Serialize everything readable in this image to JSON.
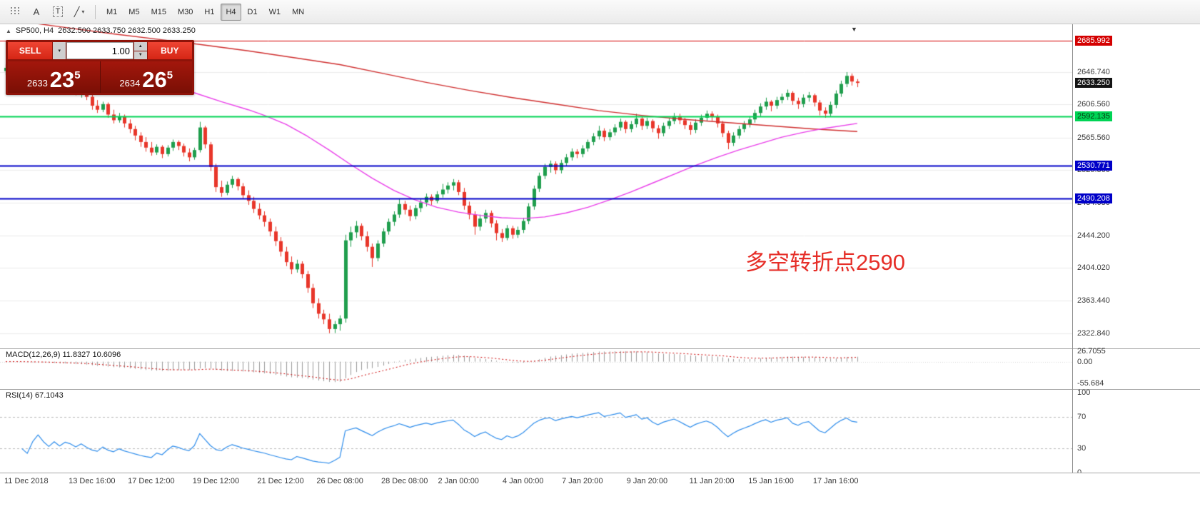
{
  "toolbar": {
    "text_tool_label": "A",
    "label_tool_label": "T",
    "timeframes": [
      {
        "label": "M1",
        "active": false
      },
      {
        "label": "M5",
        "active": false
      },
      {
        "label": "M15",
        "active": false
      },
      {
        "label": "M30",
        "active": false
      },
      {
        "label": "H1",
        "active": false
      },
      {
        "label": "H4",
        "active": true
      },
      {
        "label": "D1",
        "active": false
      },
      {
        "label": "W1",
        "active": false
      },
      {
        "label": "MN",
        "active": false
      }
    ]
  },
  "icons": {
    "caret_down": "▾",
    "spinner_up": "▲",
    "spinner_down": "▼",
    "expand_marker": "▲",
    "shift_marker": "▼",
    "line_tool": "╱"
  },
  "chart": {
    "header": {
      "symbol_text": "SP500, H4",
      "ohlc_text": "2632.500 2633.750 2632.500 2633.250"
    },
    "trade_panel": {
      "sell_label": "SELL",
      "buy_label": "BUY",
      "volume": "1.00",
      "sell_price": {
        "prefix": "2633",
        "big": "23",
        "sup": "5"
      },
      "buy_price": {
        "prefix": "2634",
        "big": "26",
        "sup": "5"
      }
    },
    "annotation": "多空转折点2590"
  },
  "chart_data": {
    "type": "candlestick",
    "symbol": "SP500",
    "timeframe": "H4",
    "colors": {
      "up": "#1f9e4d",
      "down": "#e8362a",
      "ma_slow": "#cf2e2e",
      "ma_fast": "#e93ee9",
      "grid": "#ebebeb",
      "macd_hist": "#9a9a9a",
      "macd_signal": "#cc0000",
      "rsi_line": "#2d8ceb"
    },
    "price_axis": {
      "max": 2706,
      "min": 2304,
      "gridlines": [
        {
          "v": 2646.74,
          "text": "2646.740"
        },
        {
          "v": 2606.56,
          "text": "2606.560"
        },
        {
          "v": 2565.56,
          "text": "2565.560"
        },
        {
          "v": 2525.36,
          "text": "2525.360"
        },
        {
          "v": 2484.68,
          "text": "2484.680"
        },
        {
          "v": 2444.2,
          "text": "2444.200"
        },
        {
          "v": 2404.02,
          "text": "2404.020"
        },
        {
          "v": 2363.44,
          "text": "2363.440"
        },
        {
          "v": 2322.84,
          "text": "2322.840"
        }
      ]
    },
    "current_price": {
      "v": 2633.25,
      "text": "2633.250",
      "bg": "#141414",
      "fg": "#ffffff"
    },
    "hlines": [
      {
        "v": 2685.992,
        "text": "2685.992",
        "color": "#d40000",
        "lw": 1,
        "label_fg": "#ffffff"
      },
      {
        "v": 2592.135,
        "text": "2592.135",
        "color": "#00d455",
        "lw": 2,
        "label_fg": "#063a12"
      },
      {
        "v": 2530.771,
        "text": "2530.771",
        "color": "#0000c8",
        "lw": 2,
        "label_fg": "#ffffff"
      },
      {
        "v": 2490.208,
        "text": "2490.208",
        "color": "#0000c8",
        "lw": 2,
        "label_fg": "#ffffff"
      }
    ],
    "candles": [
      [
        2648,
        2656,
        2643,
        2652
      ],
      [
        2652,
        2661,
        2648,
        2658
      ],
      [
        2658,
        2663,
        2650,
        2654
      ],
      [
        2654,
        2658,
        2640,
        2644
      ],
      [
        2644,
        2650,
        2636,
        2639
      ],
      [
        2639,
        2648,
        2635,
        2645
      ],
      [
        2645,
        2653,
        2641,
        2650
      ],
      [
        2650,
        2654,
        2638,
        2642
      ],
      [
        2642,
        2647,
        2630,
        2634
      ],
      [
        2634,
        2642,
        2629,
        2639
      ],
      [
        2639,
        2644,
        2626,
        2630
      ],
      [
        2630,
        2638,
        2624,
        2635
      ],
      [
        2635,
        2640,
        2627,
        2631
      ],
      [
        2631,
        2634,
        2618,
        2622
      ],
      [
        2622,
        2630,
        2615,
        2627
      ],
      [
        2627,
        2629,
        2612,
        2616
      ],
      [
        2616,
        2620,
        2600,
        2605
      ],
      [
        2605,
        2612,
        2596,
        2600
      ],
      [
        2600,
        2610,
        2597,
        2607
      ],
      [
        2607,
        2609,
        2590,
        2594
      ],
      [
        2594,
        2600,
        2583,
        2587
      ],
      [
        2587,
        2596,
        2584,
        2592
      ],
      [
        2592,
        2594,
        2578,
        2583
      ],
      [
        2583,
        2588,
        2571,
        2576
      ],
      [
        2576,
        2580,
        2562,
        2568
      ],
      [
        2568,
        2572,
        2554,
        2560
      ],
      [
        2560,
        2566,
        2548,
        2553
      ],
      [
        2553,
        2560,
        2543,
        2547
      ],
      [
        2547,
        2557,
        2544,
        2554
      ],
      [
        2554,
        2556,
        2540,
        2545
      ],
      [
        2545,
        2556,
        2542,
        2553
      ],
      [
        2553,
        2563,
        2549,
        2560
      ],
      [
        2560,
        2562,
        2550,
        2555
      ],
      [
        2555,
        2558,
        2542,
        2547
      ],
      [
        2547,
        2552,
        2536,
        2541
      ],
      [
        2541,
        2553,
        2538,
        2550
      ],
      [
        2550,
        2585,
        2547,
        2578
      ],
      [
        2578,
        2580,
        2552,
        2557
      ],
      [
        2557,
        2560,
        2524,
        2529
      ],
      [
        2529,
        2533,
        2498,
        2504
      ],
      [
        2504,
        2512,
        2492,
        2497
      ],
      [
        2497,
        2511,
        2494,
        2507
      ],
      [
        2507,
        2518,
        2503,
        2514
      ],
      [
        2514,
        2516,
        2500,
        2505
      ],
      [
        2505,
        2509,
        2490,
        2494
      ],
      [
        2494,
        2500,
        2482,
        2487
      ],
      [
        2487,
        2492,
        2472,
        2477
      ],
      [
        2477,
        2484,
        2464,
        2469
      ],
      [
        2469,
        2474,
        2455,
        2461
      ],
      [
        2461,
        2465,
        2443,
        2449
      ],
      [
        2449,
        2455,
        2431,
        2437
      ],
      [
        2437,
        2442,
        2418,
        2424
      ],
      [
        2424,
        2430,
        2406,
        2411
      ],
      [
        2411,
        2418,
        2396,
        2402
      ],
      [
        2402,
        2414,
        2398,
        2409
      ],
      [
        2409,
        2412,
        2391,
        2396
      ],
      [
        2396,
        2400,
        2373,
        2379
      ],
      [
        2379,
        2384,
        2354,
        2360
      ],
      [
        2360,
        2366,
        2341,
        2347
      ],
      [
        2347,
        2352,
        2334,
        2340
      ],
      [
        2340,
        2347,
        2322.8,
        2328
      ],
      [
        2328,
        2338,
        2323,
        2334
      ],
      [
        2334,
        2345,
        2326,
        2341
      ],
      [
        2341,
        2445,
        2336,
        2438
      ],
      [
        2438,
        2455,
        2430,
        2448
      ],
      [
        2448,
        2462,
        2441,
        2456
      ],
      [
        2456,
        2459,
        2438,
        2443
      ],
      [
        2443,
        2449,
        2424,
        2430
      ],
      [
        2430,
        2434,
        2405,
        2416
      ],
      [
        2416,
        2438,
        2412,
        2434
      ],
      [
        2434,
        2453,
        2430,
        2449
      ],
      [
        2449,
        2465,
        2445,
        2461
      ],
      [
        2461,
        2474,
        2456,
        2470
      ],
      [
        2470,
        2490,
        2466,
        2483
      ],
      [
        2483,
        2487,
        2470,
        2476
      ],
      [
        2476,
        2481,
        2462,
        2468
      ],
      [
        2468,
        2482,
        2464,
        2478
      ],
      [
        2478,
        2489,
        2473,
        2485
      ],
      [
        2485,
        2496,
        2480,
        2492
      ],
      [
        2492,
        2495,
        2482,
        2487
      ],
      [
        2487,
        2499,
        2484,
        2495
      ],
      [
        2495,
        2508,
        2491,
        2501
      ],
      [
        2501,
        2510,
        2496,
        2506
      ],
      [
        2506,
        2514,
        2500,
        2510
      ],
      [
        2510,
        2513,
        2494,
        2498
      ],
      [
        2498,
        2503,
        2476,
        2481
      ],
      [
        2481,
        2486,
        2464,
        2470
      ],
      [
        2470,
        2474,
        2445,
        2455
      ],
      [
        2455,
        2470,
        2450,
        2465
      ],
      [
        2465,
        2476,
        2460,
        2472
      ],
      [
        2472,
        2475,
        2454,
        2459
      ],
      [
        2459,
        2463,
        2438,
        2447
      ],
      [
        2447,
        2452,
        2436,
        2441
      ],
      [
        2441,
        2457,
        2438,
        2453
      ],
      [
        2453,
        2456,
        2440,
        2445
      ],
      [
        2445,
        2455,
        2441,
        2451
      ],
      [
        2451,
        2466,
        2447,
        2462
      ],
      [
        2462,
        2484,
        2458,
        2480
      ],
      [
        2480,
        2506,
        2476,
        2502
      ],
      [
        2502,
        2522,
        2498,
        2518
      ],
      [
        2518,
        2533,
        2514,
        2529
      ],
      [
        2529,
        2537,
        2522,
        2533
      ],
      [
        2533,
        2536,
        2520,
        2525
      ],
      [
        2525,
        2538,
        2521,
        2534
      ],
      [
        2534,
        2545,
        2530,
        2541
      ],
      [
        2541,
        2552,
        2537,
        2548
      ],
      [
        2548,
        2551,
        2540,
        2545
      ],
      [
        2545,
        2556,
        2541,
        2552
      ],
      [
        2552,
        2563,
        2548,
        2560
      ],
      [
        2560,
        2571,
        2556,
        2567
      ],
      [
        2567,
        2580,
        2563,
        2574
      ],
      [
        2574,
        2577,
        2561,
        2566
      ],
      [
        2566,
        2576,
        2562,
        2572
      ],
      [
        2572,
        2582,
        2568,
        2578
      ],
      [
        2578,
        2589,
        2574,
        2585
      ],
      [
        2585,
        2587,
        2571,
        2576
      ],
      [
        2576,
        2586,
        2572,
        2582
      ],
      [
        2582,
        2595,
        2578,
        2589
      ],
      [
        2589,
        2592,
        2575,
        2580
      ],
      [
        2580,
        2590,
        2576,
        2586
      ],
      [
        2586,
        2588,
        2572,
        2577
      ],
      [
        2577,
        2581,
        2564,
        2571
      ],
      [
        2571,
        2584,
        2567,
        2580
      ],
      [
        2580,
        2590,
        2576,
        2586
      ],
      [
        2586,
        2596,
        2582,
        2592
      ],
      [
        2592,
        2595,
        2582,
        2587
      ],
      [
        2587,
        2590,
        2576,
        2581
      ],
      [
        2581,
        2585,
        2569,
        2575
      ],
      [
        2575,
        2588,
        2571,
        2584
      ],
      [
        2584,
        2594,
        2580,
        2590
      ],
      [
        2590,
        2599,
        2586,
        2595
      ],
      [
        2595,
        2598,
        2586,
        2591
      ],
      [
        2591,
        2594,
        2578,
        2583
      ],
      [
        2583,
        2586,
        2566,
        2571
      ],
      [
        2571,
        2574,
        2551,
        2559
      ],
      [
        2559,
        2572,
        2555,
        2568
      ],
      [
        2568,
        2580,
        2564,
        2576
      ],
      [
        2576,
        2586,
        2572,
        2582
      ],
      [
        2582,
        2592,
        2578,
        2588
      ],
      [
        2588,
        2600,
        2584,
        2596
      ],
      [
        2596,
        2608,
        2592,
        2604
      ],
      [
        2604,
        2615,
        2600,
        2610
      ],
      [
        2610,
        2612,
        2598,
        2605
      ],
      [
        2605,
        2616,
        2601,
        2612
      ],
      [
        2612,
        2620,
        2608,
        2616
      ],
      [
        2616,
        2625,
        2612,
        2621
      ],
      [
        2621,
        2623,
        2606,
        2611
      ],
      [
        2611,
        2615,
        2601,
        2607
      ],
      [
        2607,
        2619,
        2603,
        2615
      ],
      [
        2615,
        2622,
        2610,
        2618
      ],
      [
        2618,
        2620,
        2604,
        2609
      ],
      [
        2609,
        2612,
        2593,
        2599
      ],
      [
        2599,
        2603,
        2590,
        2595
      ],
      [
        2595,
        2610,
        2592,
        2606
      ],
      [
        2606,
        2624,
        2602,
        2620
      ],
      [
        2620,
        2636,
        2616,
        2632
      ],
      [
        2632,
        2646.7,
        2628,
        2642
      ],
      [
        2642,
        2645,
        2630,
        2635
      ],
      [
        2635,
        2638,
        2628,
        2633.25
      ]
    ],
    "ma_lines": [
      {
        "name": "ma-slow-red",
        "colorKey": "ma_slow",
        "width": 1.4,
        "points": [
          [
            0,
            2712
          ],
          [
            10,
            2703
          ],
          [
            20,
            2694
          ],
          [
            30,
            2686
          ],
          [
            36,
            2681
          ],
          [
            45,
            2673
          ],
          [
            55,
            2663
          ],
          [
            62,
            2656
          ],
          [
            70,
            2645
          ],
          [
            78,
            2634
          ],
          [
            86,
            2624
          ],
          [
            94,
            2615
          ],
          [
            102,
            2607
          ],
          [
            110,
            2599
          ],
          [
            118,
            2593
          ],
          [
            126,
            2588
          ],
          [
            134,
            2584
          ],
          [
            142,
            2580
          ],
          [
            150,
            2576
          ],
          [
            158,
            2573
          ]
        ]
      },
      {
        "name": "ma-fast-magenta",
        "colorKey": "ma_fast",
        "width": 1.4,
        "points": [
          [
            0,
            2656
          ],
          [
            10,
            2649
          ],
          [
            20,
            2641
          ],
          [
            28,
            2632
          ],
          [
            35,
            2621
          ],
          [
            40,
            2610
          ],
          [
            45,
            2600
          ],
          [
            48,
            2593
          ],
          [
            52,
            2582
          ],
          [
            56,
            2567
          ],
          [
            60,
            2550
          ],
          [
            64,
            2532
          ],
          [
            68,
            2515
          ],
          [
            72,
            2500
          ],
          [
            76,
            2488
          ],
          [
            80,
            2479
          ],
          [
            84,
            2473
          ],
          [
            88,
            2469
          ],
          [
            92,
            2466
          ],
          [
            96,
            2465
          ],
          [
            100,
            2467
          ],
          [
            104,
            2472
          ],
          [
            108,
            2479
          ],
          [
            112,
            2488
          ],
          [
            116,
            2498
          ],
          [
            120,
            2509
          ],
          [
            124,
            2520
          ],
          [
            128,
            2531
          ],
          [
            132,
            2541
          ],
          [
            136,
            2550
          ],
          [
            140,
            2558
          ],
          [
            144,
            2566
          ],
          [
            148,
            2572
          ],
          [
            152,
            2577
          ],
          [
            158,
            2583
          ]
        ]
      }
    ],
    "x_labels": [
      {
        "i": 0,
        "text": "11 Dec 2018"
      },
      {
        "i": 16,
        "text": "13 Dec 16:00"
      },
      {
        "i": 27,
        "text": "17 Dec 12:00"
      },
      {
        "i": 39,
        "text": "19 Dec 12:00"
      },
      {
        "i": 51,
        "text": "21 Dec 12:00"
      },
      {
        "i": 62,
        "text": "26 Dec 08:00"
      },
      {
        "i": 74,
        "text": "28 Dec 08:00"
      },
      {
        "i": 84,
        "text": "2 Jan 00:00"
      },
      {
        "i": 96,
        "text": "4 Jan 00:00"
      },
      {
        "i": 107,
        "text": "7 Jan 20:00"
      },
      {
        "i": 119,
        "text": "9 Jan 20:00"
      },
      {
        "i": 131,
        "text": "11 Jan 20:00"
      },
      {
        "i": 142,
        "text": "15 Jan 16:00"
      },
      {
        "i": 154,
        "text": "17 Jan 16:00"
      }
    ],
    "macd": {
      "label": "MACD(12,26,9) 11.8327 10.6096",
      "params": {
        "fast": 12,
        "slow": 26,
        "signal": 9
      },
      "range_max": 34,
      "range_min": -70,
      "scale": [
        {
          "v": 26.7055,
          "text": "26.7055"
        },
        {
          "v": 0,
          "text": "0.00"
        },
        {
          "v": -55.684,
          "text": "-55.684"
        }
      ]
    },
    "rsi": {
      "label": "RSI(14) 67.1043",
      "period": 14,
      "current": 67.1043,
      "dotted_levels": [
        70,
        30
      ],
      "scale": [
        {
          "v": 100,
          "text": "100"
        },
        {
          "v": 70,
          "text": "70"
        },
        {
          "v": 30,
          "text": "30"
        },
        {
          "v": 0,
          "text": "0"
        }
      ]
    }
  }
}
